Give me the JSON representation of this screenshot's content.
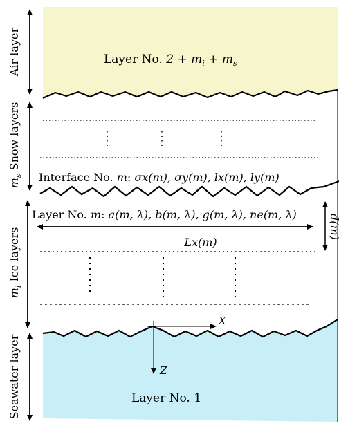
{
  "figure": {
    "side_labels": {
      "air": "Air layer",
      "snow": "Snow layers",
      "snow_count": "m",
      "snow_count_sub": "s",
      "ice": "Ice layers",
      "ice_count": "m",
      "ice_count_sub": "i",
      "seawater": "Seawater layer"
    },
    "air_layer_label": {
      "prefix": "Layer No.",
      "formula": "2 + m",
      "sub1": "i",
      "mid": " + m",
      "sub2": "s"
    },
    "interface_label": {
      "prefix": "Interface No.",
      "m": "m",
      "formula": ": σ",
      "full": "σx(m), σy(m), lx(m), ly(m)"
    },
    "layer_m_label": {
      "prefix": "Layer No.",
      "m": "m",
      "full": "a(m, λ), b(m, λ), g(m, λ), ne(m, λ)"
    },
    "lx_label": "Lx(m)",
    "dm_label": "d(m)",
    "axis_x": "X",
    "axis_z": "Z",
    "seawater_layer_label": "Layer No. 1",
    "colors": {
      "air_fill": "#f7f5cc",
      "seawater_fill": "#c8eef7",
      "stroke": "#000000"
    }
  }
}
